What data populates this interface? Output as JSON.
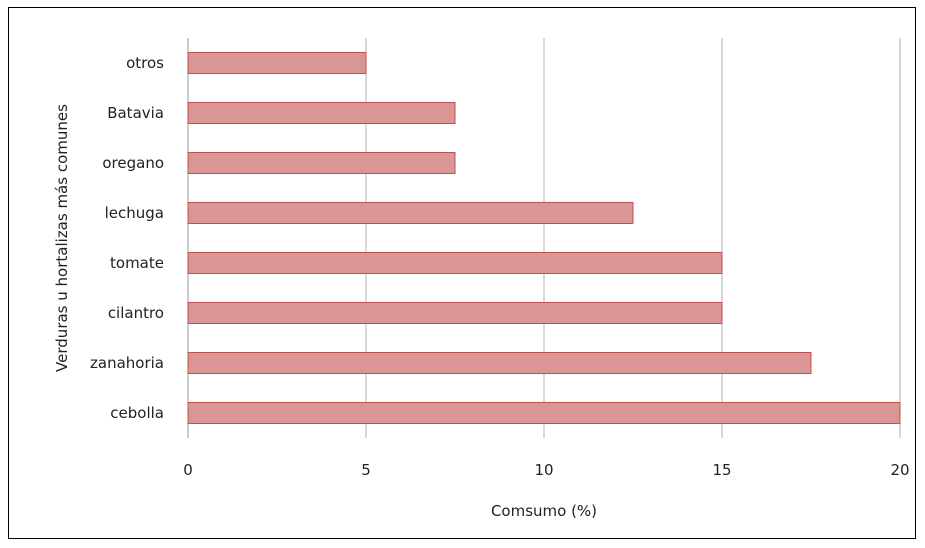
{
  "chart_data": {
    "type": "bar",
    "orientation": "horizontal",
    "title": "",
    "xlabel": "Comsumo (%)",
    "ylabel": "Verduras u hortalizas más comunes",
    "categories": [
      "otros",
      "Batavia",
      "oregano",
      "lechuga",
      "tomate",
      "cilantro",
      "zanahoria",
      "cebolla"
    ],
    "values": [
      5,
      7.5,
      7.5,
      12.5,
      15,
      15,
      17.5,
      20
    ],
    "xlim": [
      0,
      20
    ],
    "xticks": [
      "0",
      "5",
      "10",
      "15",
      "20"
    ],
    "grid": "vertical",
    "bar_color": "#d99694",
    "bar_edge_color": "#c0504d",
    "gridline_color": "#b0b0b0"
  }
}
